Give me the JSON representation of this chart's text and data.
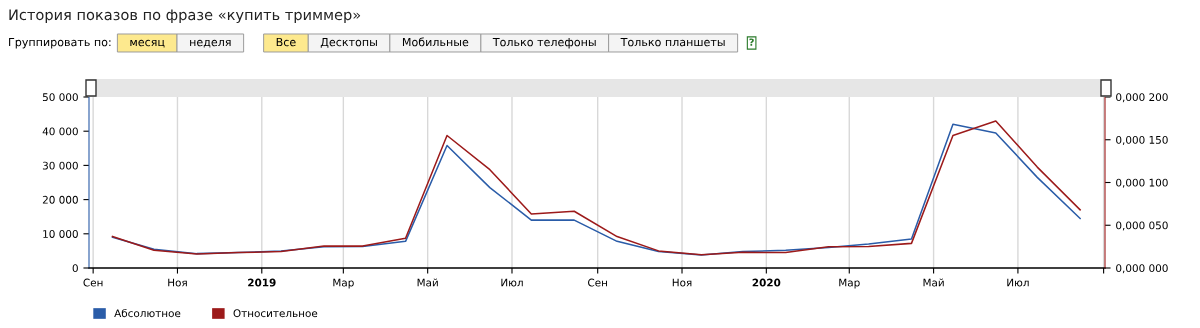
{
  "chart_data": {
    "type": "line",
    "title": "История показов по фразе «купить триммер»",
    "annotations": [
      "Группировать по:",
      "месяц",
      "неделя",
      "Все",
      "Десктопы",
      "Мобильные",
      "Только телефоны",
      "Только планшеты",
      "?"
    ],
    "x": [
      "2018-09-15",
      "2018-10-15",
      "2018-11-15",
      "2018-12-15",
      "2019-01-15",
      "2019-02-15",
      "2019-03-15",
      "2019-04-15",
      "2019-05-15",
      "2019-06-15",
      "2019-07-15",
      "2019-08-15",
      "2019-09-15",
      "2019-10-15",
      "2019-11-15",
      "2019-12-15",
      "2020-01-15",
      "2020-02-15",
      "2020-03-15",
      "2020-04-15",
      "2020-05-15",
      "2020-06-15",
      "2020-07-15",
      "2020-08-15"
    ],
    "series": [
      {
        "name": "Абсолютное",
        "color": "#2a5ca8",
        "values": [
          9000,
          5500,
          4200,
          4500,
          5000,
          6200,
          6300,
          7800,
          35800,
          23500,
          14000,
          14000,
          7800,
          4800,
          3800,
          4800,
          5200,
          6000,
          7000,
          8500,
          42000,
          39500,
          26500,
          14500
        ]
      },
      {
        "name": "Относительное",
        "color": "#9c1a1a",
        "axis": "y2",
        "values": [
          3.68e-05,
          2.08e-05,
          1.64e-05,
          1.8e-05,
          1.92e-05,
          2.56e-05,
          2.56e-05,
          3.48e-05,
          0.000155,
          0.000115,
          6.32e-05,
          6.64e-05,
          3.68e-05,
          2e-05,
          1.56e-05,
          1.84e-05,
          1.8e-05,
          2.48e-05,
          2.52e-05,
          2.88e-05,
          0.000155,
          0.000172,
          0.000118,
          6.8e-05
        ]
      }
    ],
    "xlim": [
      "2018-08-29",
      "2020-09-02"
    ],
    "xticks": [
      {
        "value": "2018-09-01",
        "label": "Сен"
      },
      {
        "value": "2018-11-01",
        "label": "Ноя"
      },
      {
        "value": "2019-01-01",
        "label": "2019"
      },
      {
        "value": "2019-03-01",
        "label": "Мар"
      },
      {
        "value": "2019-05-01",
        "label": "Май"
      },
      {
        "value": "2019-07-01",
        "label": "Июл"
      },
      {
        "value": "2019-09-01",
        "label": "Сен"
      },
      {
        "value": "2019-11-01",
        "label": "Ноя"
      },
      {
        "value": "2020-01-01",
        "label": "2020"
      },
      {
        "value": "2020-03-01",
        "label": "Мар"
      },
      {
        "value": "2020-05-01",
        "label": "Май"
      },
      {
        "value": "2020-07-01",
        "label": "Июл"
      },
      {
        "value": "2020-09-01",
        "label": null
      }
    ],
    "ylim": [
      0,
      50000
    ],
    "yticks": [
      {
        "value": 0,
        "label": "0"
      },
      {
        "value": 10000,
        "label": "10 000"
      },
      {
        "value": 20000,
        "label": "20 000"
      },
      {
        "value": 30000,
        "label": "30 000"
      },
      {
        "value": 40000,
        "label": "40 000"
      },
      {
        "value": 50000,
        "label": "50 000"
      }
    ],
    "y2lim": [
      0,
      0.0002
    ],
    "y2ticks": [
      {
        "value": 0,
        "label": "0,000 000"
      },
      {
        "value": 5e-05,
        "label": "0,000 050"
      },
      {
        "value": 0.0001,
        "label": "0,000 100"
      },
      {
        "value": 0.00015,
        "label": "0,000 150"
      },
      {
        "value": 0.0002,
        "label": "0,000 200"
      }
    ],
    "grid": "x",
    "legend": "bottom left",
    "line_style": "solid",
    "marker": "none"
  }
}
